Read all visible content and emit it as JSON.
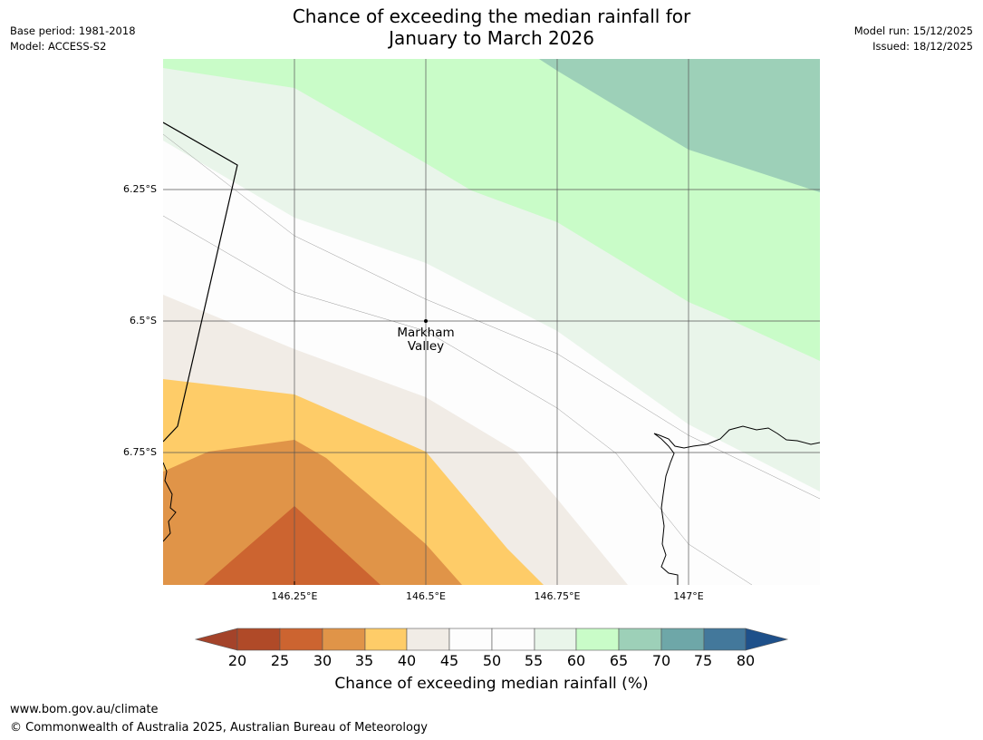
{
  "header": {
    "title_line1": "Chance of exceeding the median rainfall for",
    "title_line2": "January to March 2026",
    "base_period": "Base period: 1981-2018",
    "model": "Model: ACCESS-S2",
    "model_run": "Model run: 15/12/2025",
    "issued": "Issued: 18/12/2025"
  },
  "map": {
    "y_ticks": [
      "6.25°S",
      "6.5°S",
      "6.75°S"
    ],
    "x_ticks": [
      "146.25°E",
      "146.5°E",
      "146.75°E",
      "147°E"
    ],
    "place_label_line1": "Markham",
    "place_label_line2": "Valley",
    "bands": [
      {
        "range": "<20",
        "color": "#a4432a"
      },
      {
        "range": "20-25",
        "color": "#b04a28"
      },
      {
        "range": "25-30",
        "color": "#cc6430"
      },
      {
        "range": "30-35",
        "color": "#e09448"
      },
      {
        "range": "35-40",
        "color": "#fecc68"
      },
      {
        "range": "40-45",
        "color": "#f1ece6"
      },
      {
        "range": "45-50",
        "color": "#fdfdfd"
      },
      {
        "range": "50-55",
        "color": "#fdfdfd"
      },
      {
        "range": "55-60",
        "color": "#e9f5ea"
      },
      {
        "range": "60-65",
        "color": "#c9fcc8"
      },
      {
        "range": "65-70",
        "color": "#9dd0b8"
      },
      {
        "range": "70-75",
        "color": "#6ea7a8"
      },
      {
        "range": "75-80",
        "color": "#43789b"
      },
      {
        "range": ">80",
        "color": "#1e508a"
      }
    ]
  },
  "colorbar": {
    "ticks": [
      "20",
      "25",
      "30",
      "35",
      "40",
      "45",
      "50",
      "55",
      "60",
      "65",
      "70",
      "75",
      "80"
    ],
    "label": "Chance of exceeding median rainfall (%)"
  },
  "footer": {
    "url": "www.bom.gov.au/climate",
    "copyright": "© Commonwealth of Australia 2025, Australian Bureau of Meteorology"
  }
}
